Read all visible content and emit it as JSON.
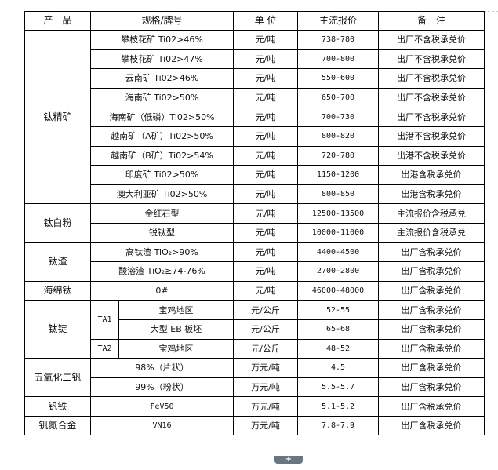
{
  "headers": {
    "product": "产　品",
    "spec": "规格/牌号",
    "unit": "单 位",
    "price": "主流报价",
    "note": "备　注"
  },
  "titanium_concentrate": {
    "product": "钛精矿",
    "rows": [
      {
        "spec": "攀枝花矿 Ti02>46%",
        "unit": "元/吨",
        "price": "738-780",
        "note": "出厂不含税承兑价"
      },
      {
        "spec": "攀枝花矿 Ti02>47%",
        "unit": "元/吨",
        "price": "700-800",
        "note": "出厂不含税承兑价"
      },
      {
        "spec": "云南矿 Ti02>46%",
        "unit": "元/吨",
        "price": "550-600",
        "note": "出厂不含税承兑价"
      },
      {
        "spec": "海南矿 Ti02>50%",
        "unit": "元/吨",
        "price": "650-700",
        "note": "出厂不含税承兑价"
      },
      {
        "spec": "海南矿（低磷）Ti02>50%",
        "unit": "元/吨",
        "price": "700-730",
        "note": "出厂不含税承兑价"
      },
      {
        "spec": "越南矿（A矿）Ti02>50%",
        "unit": "元/吨",
        "price": "800-820",
        "note": "出港不含税承兑价"
      },
      {
        "spec": "越南矿（B矿）Ti02>54%",
        "unit": "元/吨",
        "price": "720-780",
        "note": "出港不含税承兑价"
      },
      {
        "spec": "印度矿 Ti02>50%",
        "unit": "元/吨",
        "price": "1150-1200",
        "note": "出港含税承兑价"
      },
      {
        "spec": "澳大利亚矿 Ti02>50%",
        "unit": "元/吨",
        "price": "800-850",
        "note": "出港含税承兑价"
      }
    ]
  },
  "titanium_dioxide": {
    "product": "钛白粉",
    "rows": [
      {
        "spec": "金红石型",
        "unit": "元/吨",
        "price": "12500-13500",
        "note": "主流报价含税承兑"
      },
      {
        "spec": "锐钛型",
        "unit": "元/吨",
        "price": "10000-11000",
        "note": "主流报价含税承兑"
      }
    ]
  },
  "titanium_slag": {
    "product": "钛渣",
    "rows": [
      {
        "spec": "高钛渣 TiO₂>90%",
        "unit": "元/吨",
        "price": "4400-4500",
        "note": "出厂含税承兑价"
      },
      {
        "spec": "酸溶渣 TiO₂≥74-76%",
        "unit": "元/吨",
        "price": "2700-2800",
        "note": "出厂含税承兑价"
      }
    ]
  },
  "sponge_titanium": {
    "product": "海绵钛",
    "spec": "0#",
    "unit": "元/吨",
    "price": "46000-48000",
    "note": "出厂含税承兑价"
  },
  "titanium_ingot": {
    "product": "钛锭",
    "grade1": "TA1",
    "grade2": "TA2",
    "rows": [
      {
        "spec": "宝鸡地区",
        "unit": "元/公斤",
        "price": "52-55",
        "note": "出厂含税承兑价"
      },
      {
        "spec": "大型 EB 板坯",
        "unit": "元/公斤",
        "price": "65-68",
        "note": "出厂含税承兑价"
      },
      {
        "spec": "宝鸡地区",
        "unit": "元/公斤",
        "price": "48-52",
        "note": "出厂含税承兑价"
      }
    ]
  },
  "vanadium_pentoxide": {
    "product": "五氧化二钒",
    "rows": [
      {
        "spec": "98%（片状）",
        "unit": "万元/吨",
        "price": "4.5",
        "note": "出厂含税承兑价"
      },
      {
        "spec": "99%（粉状）",
        "unit": "万元/吨",
        "price": "5.5-5.7",
        "note": "出厂含税承兑价"
      }
    ]
  },
  "ferrovanadium": {
    "product": "钒铁",
    "spec": "FeV50",
    "unit": "万元/吨",
    "price": "5.1-5.2",
    "note": "出厂含税承兑价"
  },
  "vanadium_nitrogen": {
    "product": "钒氮合金",
    "spec": "VN16",
    "unit": "万元/吨",
    "price": "7.8-7.9",
    "note": "出厂含税承兑价"
  },
  "expand_button": "+"
}
